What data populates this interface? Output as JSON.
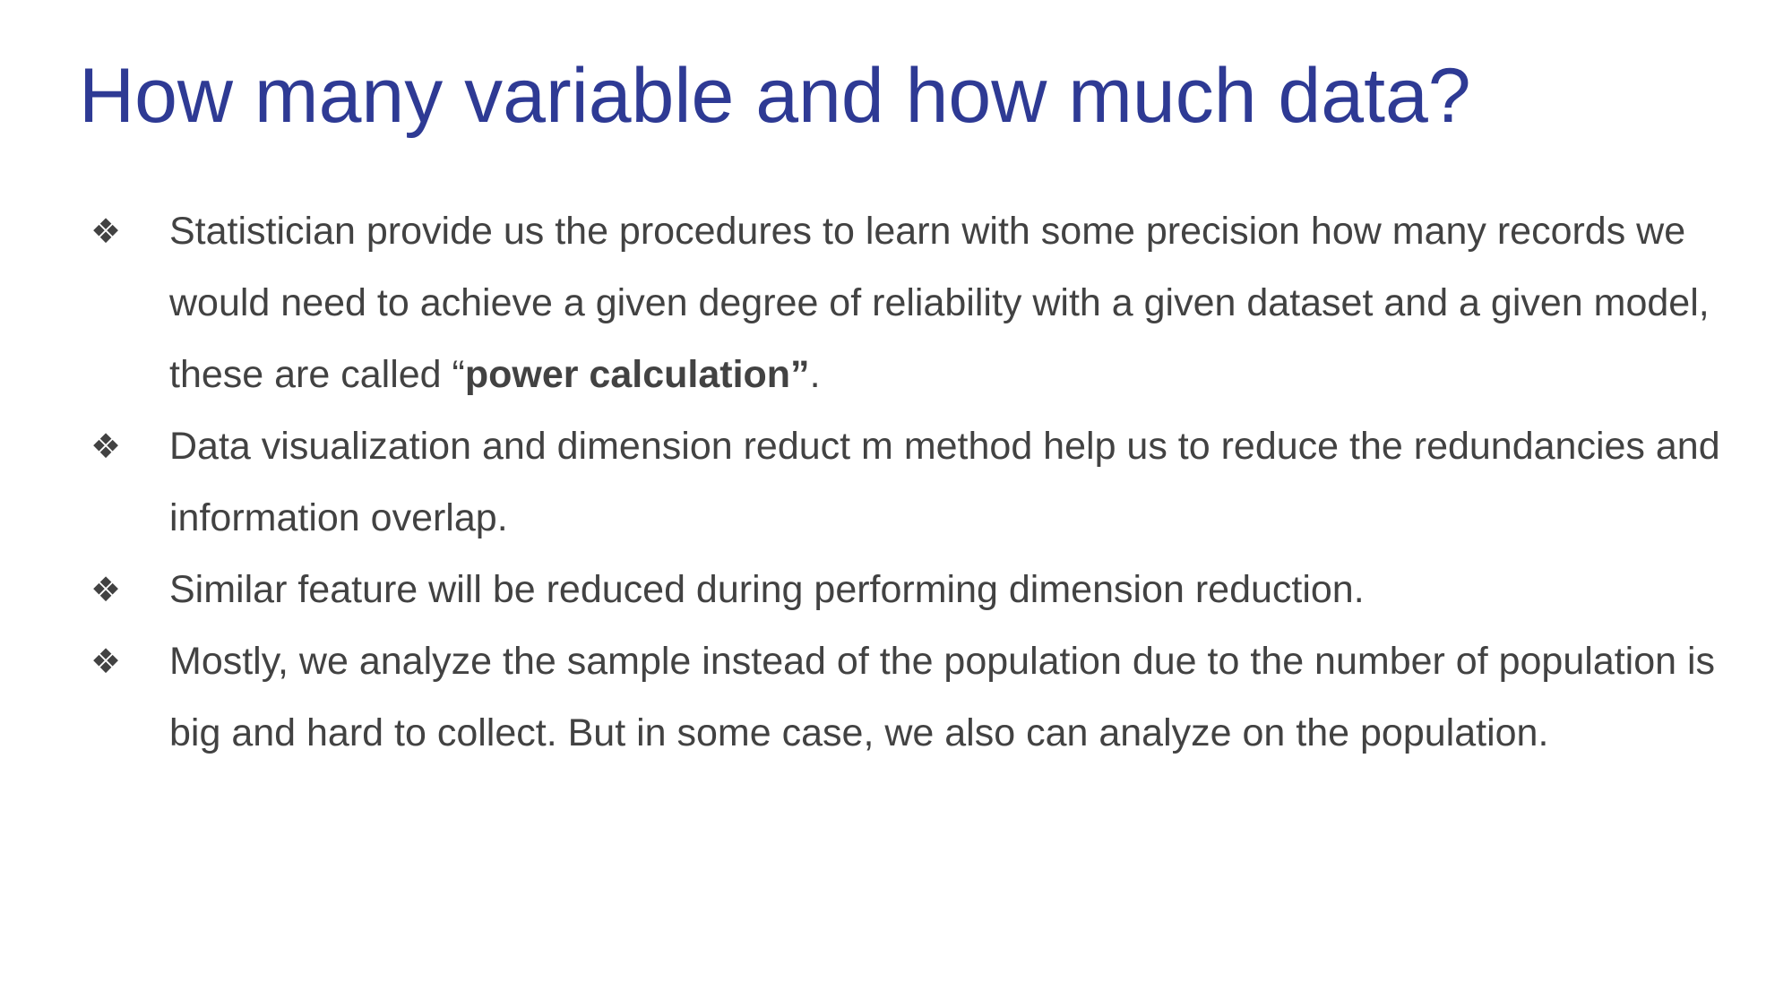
{
  "slide": {
    "title": "How many variable and how much data?",
    "bullet_icon": "four-diamond-bullet-icon",
    "bullets": [
      {
        "before": "Statistician provide us the procedures to learn with some precision how many records we would need to achieve a given degree of reliability with a given dataset and a given model, these are called “",
        "bold": "power calculation”",
        "after": "."
      },
      {
        "before": "Data visualization and dimension reduct m method help us to reduce the redundancies and information overlap.",
        "bold": "",
        "after": ""
      },
      {
        "before": "Similar feature will be reduced during performing dimension reduction.",
        "bold": "",
        "after": ""
      },
      {
        "before": "Mostly, we analyze the sample instead of the population due to the number of population is big and hard to collect. But in some case, we also can analyze on the population.",
        "bold": "",
        "after": ""
      }
    ]
  },
  "colors": {
    "title": "#2e3a94",
    "body_text": "#424242",
    "background": "#ffffff"
  }
}
